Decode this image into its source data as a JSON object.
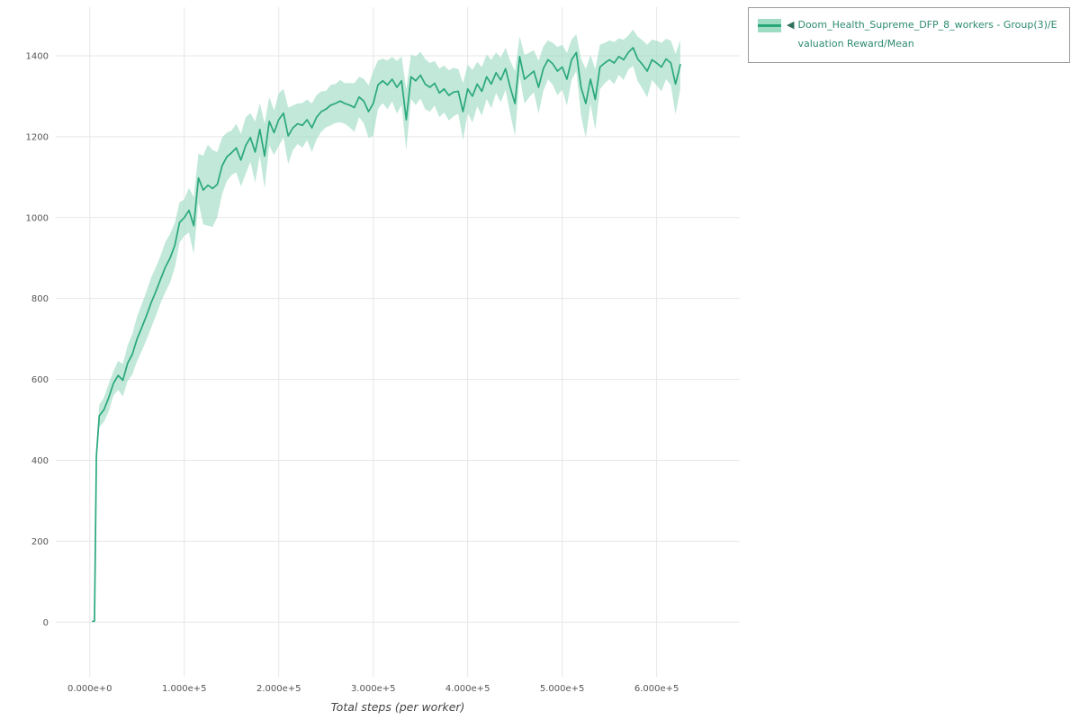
{
  "legend": {
    "collapse_icon": "◀",
    "series_label": "Doom_Health_Supreme_DFP_8_workers - Group(3)/Evaluation Reward/Mean"
  },
  "colors": {
    "line": "#2aa87b",
    "band": "#9fdcc4",
    "grid": "#e7e7e7",
    "tick_text": "#555555",
    "legend_text": "#2c8a70",
    "collapse_icon": "#2f6f5e"
  },
  "chart_data": {
    "type": "line",
    "title": "",
    "xlabel": "Total steps (per worker)",
    "ylabel": "",
    "legend_position": "top-right-outside",
    "grid": true,
    "xlim": [
      -36000,
      688000
    ],
    "ylim": [
      -135,
      1520
    ],
    "x_tick_values": [
      0,
      100000,
      200000,
      300000,
      400000,
      500000,
      600000
    ],
    "x_tick_labels": [
      "0.000e+0",
      "1.000e+5",
      "2.000e+5",
      "3.000e+5",
      "4.000e+5",
      "5.000e+5",
      "6.000e+5"
    ],
    "y_tick_values": [
      0,
      200,
      400,
      600,
      800,
      1000,
      1200,
      1400
    ],
    "series": [
      {
        "name": "Doom_Health_Supreme_DFP_8_workers - Group(3)/Evaluation Reward/Mean",
        "steps": [
          3000,
          5000,
          7000,
          10000,
          15000,
          20000,
          25000,
          30000,
          35000,
          40000,
          45000,
          50000,
          55000,
          60000,
          65000,
          70000,
          75000,
          80000,
          85000,
          90000,
          95000,
          100000,
          105000,
          110000,
          115000,
          120000,
          125000,
          130000,
          135000,
          140000,
          145000,
          150000,
          155000,
          160000,
          165000,
          170000,
          175000,
          180000,
          185000,
          190000,
          195000,
          200000,
          205000,
          210000,
          215000,
          220000,
          225000,
          230000,
          235000,
          240000,
          245000,
          250000,
          255000,
          260000,
          265000,
          270000,
          275000,
          280000,
          285000,
          290000,
          295000,
          300000,
          305000,
          310000,
          315000,
          320000,
          325000,
          330000,
          335000,
          340000,
          345000,
          350000,
          355000,
          360000,
          365000,
          370000,
          375000,
          380000,
          385000,
          390000,
          395000,
          400000,
          405000,
          410000,
          415000,
          420000,
          425000,
          430000,
          435000,
          440000,
          445000,
          450000,
          455000,
          460000,
          465000,
          470000,
          475000,
          480000,
          485000,
          490000,
          495000,
          500000,
          505000,
          510000,
          515000,
          520000,
          525000,
          530000,
          535000,
          540000,
          545000,
          550000,
          555000,
          560000,
          565000,
          570000,
          575000,
          580000,
          585000,
          590000,
          595000,
          600000,
          605000,
          610000,
          615000,
          620000,
          625000
        ],
        "mean": [
          2,
          3,
          410,
          510,
          525,
          555,
          590,
          610,
          598,
          640,
          662,
          700,
          728,
          758,
          790,
          818,
          848,
          878,
          900,
          932,
          988,
          1000,
          1018,
          980,
          1098,
          1068,
          1080,
          1072,
          1082,
          1128,
          1150,
          1160,
          1172,
          1142,
          1178,
          1198,
          1162,
          1218,
          1152,
          1238,
          1210,
          1242,
          1258,
          1202,
          1222,
          1232,
          1228,
          1242,
          1222,
          1248,
          1262,
          1268,
          1278,
          1282,
          1288,
          1282,
          1278,
          1272,
          1298,
          1288,
          1262,
          1282,
          1328,
          1338,
          1328,
          1342,
          1322,
          1338,
          1242,
          1348,
          1338,
          1352,
          1330,
          1322,
          1332,
          1308,
          1318,
          1302,
          1310,
          1312,
          1262,
          1318,
          1300,
          1330,
          1312,
          1348,
          1330,
          1358,
          1340,
          1368,
          1322,
          1282,
          1398,
          1342,
          1352,
          1362,
          1322,
          1368,
          1390,
          1380,
          1362,
          1372,
          1342,
          1390,
          1408,
          1322,
          1282,
          1342,
          1292,
          1372,
          1382,
          1390,
          1382,
          1398,
          1390,
          1408,
          1420,
          1392,
          1378,
          1362,
          1390,
          1382,
          1372,
          1392,
          1382,
          1330,
          1378
        ],
        "spread": [
          2,
          2,
          20,
          28,
          30,
          34,
          30,
          36,
          40,
          44,
          50,
          55,
          58,
          60,
          62,
          60,
          58,
          62,
          60,
          55,
          50,
          45,
          55,
          70,
          60,
          85,
          100,
          95,
          80,
          70,
          60,
          55,
          60,
          65,
          70,
          60,
          75,
          65,
          80,
          60,
          55,
          65,
          60,
          70,
          55,
          50,
          55,
          50,
          60,
          55,
          50,
          45,
          50,
          48,
          52,
          50,
          55,
          60,
          50,
          55,
          65,
          80,
          60,
          55,
          60,
          55,
          65,
          60,
          75,
          55,
          60,
          58,
          62,
          60,
          55,
          60,
          58,
          62,
          60,
          55,
          70,
          60,
          65,
          55,
          60,
          55,
          60,
          50,
          55,
          52,
          65,
          80,
          50,
          60,
          55,
          52,
          65,
          55,
          48,
          52,
          60,
          55,
          65,
          50,
          45,
          70,
          85,
          60,
          75,
          55,
          50,
          48,
          52,
          45,
          50,
          42,
          45,
          55,
          60,
          65,
          50,
          55,
          60,
          50,
          55,
          75,
          60
        ]
      }
    ]
  }
}
